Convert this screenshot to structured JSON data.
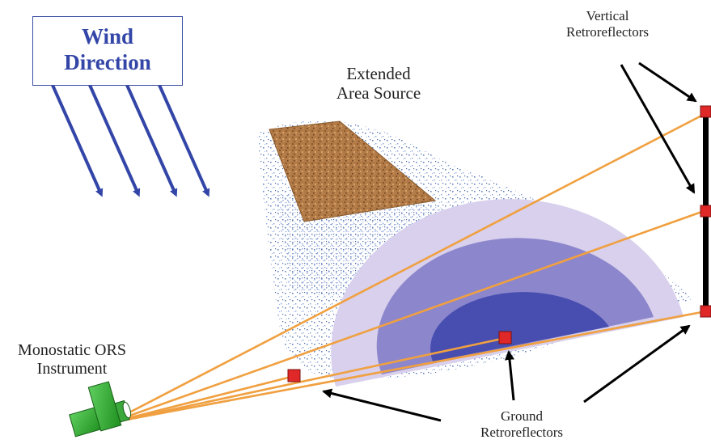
{
  "wind": {
    "line1": "Wind",
    "line2": "Direction"
  },
  "source_label": {
    "line1": "Extended",
    "line2": "Area Source"
  },
  "vertical_label": {
    "line1": "Vertical",
    "line2": "Retroreflectors"
  },
  "instrument_label": {
    "line1": "Monostatic ORS",
    "line2": "Instrument"
  },
  "ground_label": {
    "line1": "Ground",
    "line2": "Retroreflectors"
  },
  "colors": {
    "wind_blue": "#3346a8",
    "beam": "#f0a040",
    "reflector": "#e02828",
    "instrument": "#33b233",
    "plume_outer": "#d8d0ec",
    "plume_mid": "#8c86cc",
    "plume_inner": "#474eb0",
    "source": "#b27a46"
  }
}
